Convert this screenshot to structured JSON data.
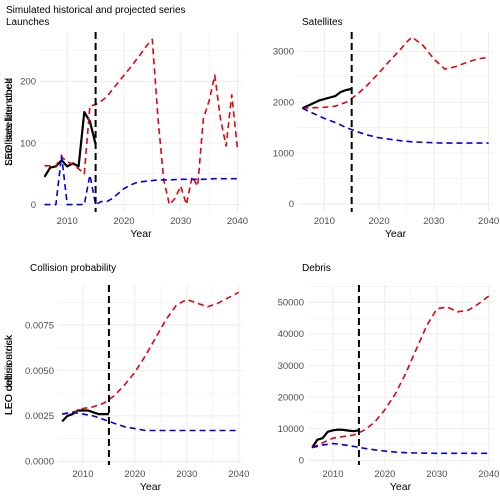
{
  "figure": {
    "suptitle": "Simulated historical and projected series"
  },
  "colors": {
    "historical": "#000000",
    "projection_high": "#e8000b",
    "projection_low": "#0000dd",
    "grid": "#ebebeb",
    "policy_line": "#000000"
  },
  "chart_data": [
    {
      "id": "launches",
      "type": "line",
      "title": "Launches",
      "xlabel": "Year",
      "ylabel": "Satellites launched",
      "xlim": [
        2005.2,
        2040.8
      ],
      "ylim": [
        -12,
        280
      ],
      "xticks": [
        2010,
        2020,
        2030,
        2040
      ],
      "yticks": [
        0,
        100,
        200
      ],
      "ytick_labels": [
        "0",
        "100",
        "200"
      ],
      "vline_x": 2015,
      "grid": true,
      "series": [
        {
          "role": "historical",
          "style": "solid",
          "x": [
            2006,
            2007,
            2008,
            2009,
            2010,
            2011,
            2012,
            2013,
            2014,
            2015
          ],
          "y": [
            45,
            60,
            62,
            72,
            62,
            67,
            62,
            150,
            135,
            98
          ]
        },
        {
          "role": "projection_high",
          "style": "dashed",
          "x": [
            2006,
            2008,
            2009,
            2010,
            2011,
            2012,
            2013,
            2014,
            2015,
            2016,
            2017,
            2018,
            2019,
            2020,
            2021,
            2022,
            2023,
            2024,
            2025,
            2026,
            2027,
            2028,
            2029,
            2030,
            2031,
            2032,
            2033,
            2034,
            2035,
            2036,
            2037,
            2038,
            2039,
            2040
          ],
          "y": [
            63,
            63,
            77,
            70,
            65,
            58,
            50,
            160,
            162,
            168,
            175,
            187,
            198,
            210,
            221,
            233,
            245,
            258,
            268,
            140,
            40,
            0,
            10,
            30,
            0,
            45,
            30,
            140,
            168,
            210,
            140,
            95,
            178,
            90
          ]
        },
        {
          "role": "projection_low",
          "style": "dashed",
          "x": [
            2006,
            2007,
            2008,
            2009,
            2010,
            2011,
            2012,
            2013,
            2014,
            2015,
            2016,
            2017,
            2018,
            2019,
            2020,
            2021,
            2022,
            2023,
            2024,
            2025,
            2026,
            2028,
            2030,
            2032,
            2034,
            2036,
            2038,
            2040
          ],
          "y": [
            0,
            0,
            0,
            80,
            0,
            0,
            0,
            0,
            48,
            0,
            5,
            5,
            10,
            18,
            26,
            31,
            35,
            37,
            38,
            39,
            40,
            40,
            41,
            41,
            41,
            42,
            42,
            42
          ]
        }
      ]
    },
    {
      "id": "satellites",
      "type": "line",
      "title": "Satellites",
      "xlabel": "Year",
      "ylabel": "LEO satellite stock",
      "xlim": [
        2005.2,
        2040.8
      ],
      "ylim": [
        -160,
        3380
      ],
      "xticks": [
        2010,
        2020,
        2030,
        2040
      ],
      "yticks": [
        0,
        1000,
        2000,
        3000
      ],
      "ytick_labels": [
        "0",
        "1000",
        "2000",
        "3000"
      ],
      "vline_x": 2015,
      "grid": true,
      "series": [
        {
          "role": "historical",
          "style": "solid",
          "x": [
            2006,
            2007,
            2008,
            2009,
            2010,
            2011,
            2012,
            2013,
            2014,
            2015
          ],
          "y": [
            1880,
            1930,
            1980,
            2030,
            2060,
            2090,
            2120,
            2200,
            2240,
            2260
          ]
        },
        {
          "role": "projection_high",
          "style": "dashed",
          "x": [
            2006,
            2008,
            2010,
            2012,
            2014,
            2016,
            2018,
            2020,
            2022,
            2024,
            2025,
            2026,
            2028,
            2030,
            2032,
            2034,
            2036,
            2038,
            2040
          ],
          "y": [
            1880,
            1890,
            1900,
            1920,
            2000,
            2150,
            2350,
            2580,
            2820,
            3050,
            3180,
            3280,
            3120,
            2850,
            2650,
            2700,
            2780,
            2850,
            2880
          ]
        },
        {
          "role": "projection_low",
          "style": "dashed",
          "x": [
            2006,
            2008,
            2010,
            2012,
            2014,
            2016,
            2018,
            2020,
            2022,
            2024,
            2026,
            2028,
            2030,
            2032,
            2034,
            2036,
            2038,
            2040
          ],
          "y": [
            1880,
            1780,
            1680,
            1600,
            1500,
            1420,
            1350,
            1300,
            1270,
            1240,
            1220,
            1210,
            1200,
            1195,
            1195,
            1195,
            1195,
            1195
          ]
        }
      ]
    },
    {
      "id": "collision",
      "type": "line",
      "title": "Collision probability",
      "xlabel": "Year",
      "ylabel": "LEO collision risk",
      "xlim": [
        2005.2,
        2040.8
      ],
      "ylim": [
        -0.0002,
        0.0097
      ],
      "xticks": [
        2010,
        2020,
        2030,
        2040
      ],
      "yticks": [
        0,
        0.0025,
        0.005,
        0.0075
      ],
      "ytick_labels": [
        "0.0000",
        "0.0025",
        "0.0050",
        "0.0075"
      ],
      "vline_x": 2015,
      "grid": true,
      "series": [
        {
          "role": "historical",
          "style": "solid",
          "x": [
            2006,
            2007,
            2008,
            2009,
            2010,
            2011,
            2012,
            2013,
            2014,
            2015
          ],
          "y": [
            0.0022,
            0.0025,
            0.0026,
            0.0028,
            0.0028,
            0.0028,
            0.0027,
            0.0026,
            0.0026,
            0.0026
          ]
        },
        {
          "role": "projection_high",
          "style": "dashed",
          "x": [
            2006,
            2008,
            2010,
            2012,
            2014,
            2016,
            2018,
            2020,
            2022,
            2024,
            2026,
            2028,
            2030,
            2032,
            2034,
            2036,
            2038,
            2040
          ],
          "y": [
            0.0026,
            0.0027,
            0.0029,
            0.003,
            0.0032,
            0.0036,
            0.0042,
            0.0049,
            0.0058,
            0.0068,
            0.0078,
            0.0086,
            0.0089,
            0.0087,
            0.0085,
            0.0087,
            0.009,
            0.0093
          ]
        },
        {
          "role": "projection_low",
          "style": "dashed",
          "x": [
            2006,
            2008,
            2010,
            2012,
            2014,
            2016,
            2018,
            2020,
            2022,
            2024,
            2026,
            2028,
            2030,
            2032,
            2034,
            2036,
            2038,
            2040
          ],
          "y": [
            0.0026,
            0.0027,
            0.0026,
            0.0025,
            0.0023,
            0.0021,
            0.0019,
            0.0018,
            0.0017,
            0.0017,
            0.0017,
            0.0017,
            0.0017,
            0.0017,
            0.0017,
            0.0017,
            0.0017,
            0.0017
          ]
        }
      ]
    },
    {
      "id": "debris",
      "type": "line",
      "title": "Debris",
      "xlabel": "Year",
      "ylabel": "LEO debris stock",
      "xlim": [
        2005.2,
        2040.8
      ],
      "ylim": [
        -1500,
        55500
      ],
      "xticks": [
        2010,
        2020,
        2030,
        2040
      ],
      "yticks": [
        0,
        10000,
        20000,
        30000,
        40000,
        50000
      ],
      "ytick_labels": [
        "0",
        "10000",
        "20000",
        "30000",
        "40000",
        "50000"
      ],
      "vline_x": 2015,
      "grid": true,
      "series": [
        {
          "role": "historical",
          "style": "solid",
          "x": [
            2006,
            2007,
            2008,
            2009,
            2010,
            2011,
            2012,
            2013,
            2014,
            2015
          ],
          "y": [
            4000,
            6500,
            7000,
            9000,
            9500,
            9700,
            9600,
            9400,
            9200,
            9500
          ]
        },
        {
          "role": "projection_high",
          "style": "dashed",
          "x": [
            2006,
            2008,
            2010,
            2012,
            2014,
            2016,
            2018,
            2020,
            2022,
            2024,
            2026,
            2028,
            2030,
            2032,
            2034,
            2036,
            2038,
            2040
          ],
          "y": [
            4000,
            5500,
            7000,
            7500,
            8000,
            9500,
            12000,
            16000,
            21000,
            27500,
            35000,
            42500,
            48000,
            48500,
            47000,
            47500,
            49500,
            52000
          ]
        },
        {
          "role": "projection_low",
          "style": "dashed",
          "x": [
            2006,
            2008,
            2010,
            2012,
            2014,
            2016,
            2018,
            2020,
            2022,
            2024,
            2026,
            2028,
            2030,
            2032,
            2034,
            2036,
            2038,
            2040
          ],
          "y": [
            4000,
            4800,
            5300,
            4900,
            4400,
            3800,
            3300,
            2900,
            2600,
            2400,
            2300,
            2250,
            2200,
            2200,
            2200,
            2200,
            2200,
            2200
          ]
        }
      ]
    }
  ]
}
